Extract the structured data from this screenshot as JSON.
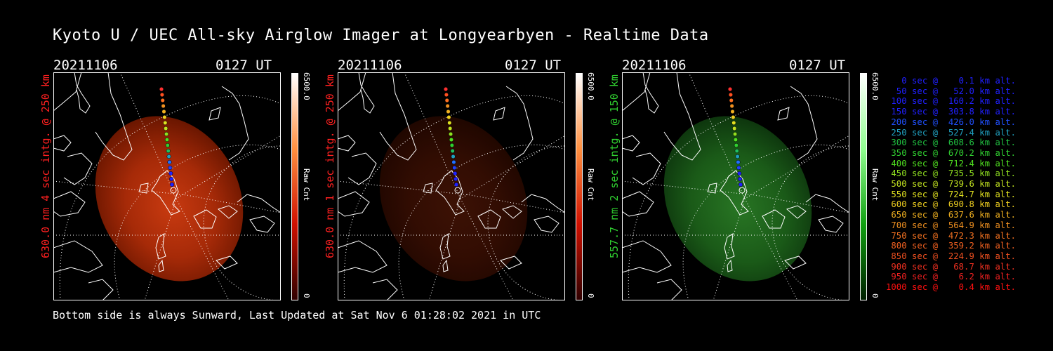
{
  "title": "Kyoto U / UEC All-sky Airglow Imager at Longyearbyen - Realtime Data",
  "footer": "Bottom side is always Sunward, Last Updated at Sat Nov  6 01:28:02 2021 in UTC",
  "panels": [
    {
      "date": "20211106",
      "time": "0127 UT",
      "side_label": "630.0 nm 4 sec intg. @ 250 km",
      "side_color": "#ff2020",
      "colorbar_max": "6500.0",
      "colorbar_min": "0",
      "colorbar_label": "Raw Cnt",
      "theme": "red",
      "brightness": 1.0
    },
    {
      "date": "20211106",
      "time": "0127 UT",
      "side_label": "630.0 nm 1 sec intg. @ 250 km",
      "side_color": "#ff2020",
      "colorbar_max": "6500.0",
      "colorbar_min": "0",
      "colorbar_label": "Raw Cnt",
      "theme": "red",
      "brightness": 0.3
    },
    {
      "date": "20211106",
      "time": "0127 UT",
      "side_label": "557.7 nm 2 sec intg. @ 150 km",
      "side_color": "#30d030",
      "colorbar_max": "6500.0",
      "colorbar_min": "0",
      "colorbar_label": "Raw Cnt",
      "theme": "green",
      "brightness": 0.85
    }
  ],
  "trajectory_legend": [
    {
      "text": "   0 sec @    0.1 km alt.",
      "color": "#2020ff"
    },
    {
      "text": "  50 sec @   52.0 km alt.",
      "color": "#2020ff"
    },
    {
      "text": " 100 sec @  160.2 km alt.",
      "color": "#2020ff"
    },
    {
      "text": " 150 sec @  303.8 km alt.",
      "color": "#2020ff"
    },
    {
      "text": " 200 sec @  426.0 km alt.",
      "color": "#2050ff"
    },
    {
      "text": " 250 sec @  527.4 km alt.",
      "color": "#20a0c0"
    },
    {
      "text": " 300 sec @  608.6 km alt.",
      "color": "#20c040"
    },
    {
      "text": " 350 sec @  670.2 km alt.",
      "color": "#30d030"
    },
    {
      "text": " 400 sec @  712.4 km alt.",
      "color": "#50e020"
    },
    {
      "text": " 450 sec @  735.5 km alt.",
      "color": "#90e020"
    },
    {
      "text": " 500 sec @  739.6 km alt.",
      "color": "#c0e020"
    },
    {
      "text": " 550 sec @  724.7 km alt.",
      "color": "#e0e020"
    },
    {
      "text": " 600 sec @  690.8 km alt.",
      "color": "#f0d020"
    },
    {
      "text": " 650 sec @  637.6 km alt.",
      "color": "#f0b020"
    },
    {
      "text": " 700 sec @  564.9 km alt.",
      "color": "#f09020"
    },
    {
      "text": " 750 sec @  472.3 km alt.",
      "color": "#f07020"
    },
    {
      "text": " 800 sec @  359.2 km alt.",
      "color": "#f06020"
    },
    {
      "text": " 850 sec @  224.9 km alt.",
      "color": "#f05020"
    },
    {
      "text": " 900 sec @   68.7 km alt.",
      "color": "#f03020"
    },
    {
      "text": " 950 sec @    6.2 km alt.",
      "color": "#f02020"
    },
    {
      "text": "1000 sec @    0.4 km alt.",
      "color": "#ff1010"
    }
  ]
}
